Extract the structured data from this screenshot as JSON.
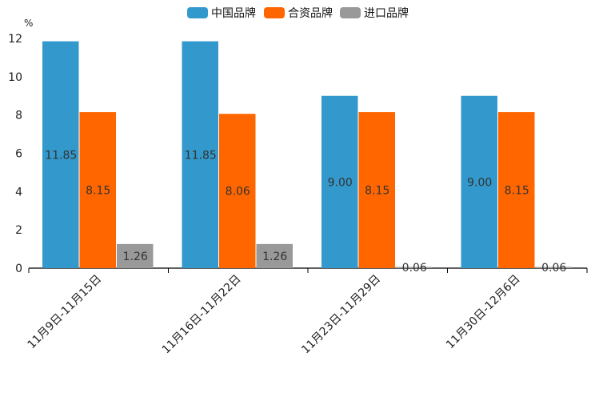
{
  "chart_data": {
    "type": "bar",
    "unit": "%",
    "categories": [
      "11月9日-11月15日",
      "11月16日-11月22日",
      "11月23日-11月29日",
      "11月30日-12月6日"
    ],
    "series": [
      {
        "name": "中国品牌",
        "color": "#3399cc",
        "values": [
          11.85,
          11.85,
          9.0,
          9.0
        ],
        "labels": [
          "11.85",
          "11.85",
          "9.00",
          "9.00"
        ]
      },
      {
        "name": "合资品牌",
        "color": "#ff6600",
        "values": [
          8.15,
          8.06,
          8.15,
          8.15
        ],
        "labels": [
          "8.15",
          "8.06",
          "8.15",
          "8.15"
        ]
      },
      {
        "name": "进口品牌",
        "color": "#999999",
        "values": [
          1.26,
          1.26,
          0.06,
          0.06
        ],
        "labels": [
          "1.26",
          "1.26",
          "0.06",
          "0.06"
        ]
      }
    ],
    "yticks": [
      "0",
      "2",
      "4",
      "6",
      "8",
      "10",
      "12"
    ],
    "ylim": [
      0,
      12
    ],
    "legend_position": "top-center",
    "grid": false
  }
}
